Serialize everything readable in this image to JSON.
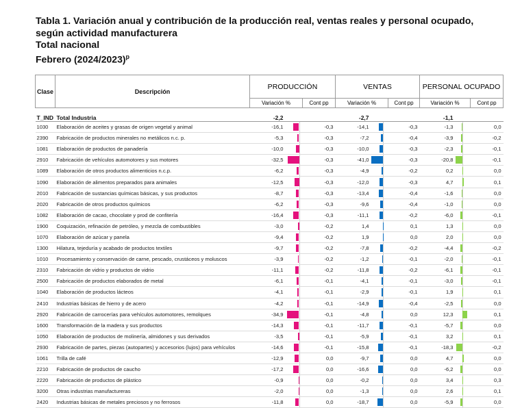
{
  "title": {
    "line1": "Tabla 1. Variación anual y contribución de la producción real, ventas reales y personal ocupado,",
    "line2": "según actividad manufacturera",
    "line3": "Total nacional",
    "line4": "Febrero (2024/2023)",
    "line4_sup": "p"
  },
  "headers": {
    "clase": "Clase",
    "descripcion": "Descripción",
    "produccion": "PRODUCCIÓN",
    "ventas": "VENTAS",
    "personal": "PERSONAL OCUPADO",
    "variacion": "Variación %",
    "contribucion": "Cont pp"
  },
  "colors": {
    "produccion_bar": "#e4127d",
    "ventas_bar": "#0a6fc2",
    "personal_bar": "#8dd34a"
  },
  "total": {
    "clase": "T_IND",
    "desc": "Total Industria",
    "prod_var": "-2,2",
    "vent_var": "-2,7",
    "pers_var": "-1,1"
  },
  "rows": [
    {
      "clase": "1030",
      "desc": "Elaboración de aceites y grasas de origen vegetal y animal",
      "prod_var": "-16,1",
      "prod_cont": "-0,3",
      "vent_var": "-14,1",
      "vent_cont": "-0,3",
      "pers_var": "-1,3",
      "pers_cont": "0,0"
    },
    {
      "clase": "2390",
      "desc": "Fabricación de productos minerales no metálicos n.c. p.",
      "prod_var": "-5,3",
      "prod_cont": "-0,3",
      "vent_var": "-7,2",
      "vent_cont": "-0,4",
      "pers_var": "-3,9",
      "pers_cont": "-0,2"
    },
    {
      "clase": "1081",
      "desc": "Elaboración de productos de panadería",
      "prod_var": "-10,0",
      "prod_cont": "-0,3",
      "vent_var": "-10,0",
      "vent_cont": "-0,3",
      "pers_var": "-2,3",
      "pers_cont": "-0,1"
    },
    {
      "clase": "2910",
      "desc": "Fabricación de vehículos automotores y sus motores",
      "prod_var": "-32,5",
      "prod_cont": "-0,3",
      "vent_var": "-41,0",
      "vent_cont": "-0,3",
      "pers_var": "-20,8",
      "pers_cont": "-0,1"
    },
    {
      "clase": "1089",
      "desc": "Elaboración de otros productos alimenticios n.c.p.",
      "prod_var": "-6,2",
      "prod_cont": "-0,3",
      "vent_var": "-4,9",
      "vent_cont": "-0,2",
      "pers_var": "0,2",
      "pers_cont": "0,0"
    },
    {
      "clase": "1090",
      "desc": "Elaboración de alimentos preparados para animales",
      "prod_var": "-12,5",
      "prod_cont": "-0,3",
      "vent_var": "-12,0",
      "vent_cont": "-0,3",
      "pers_var": "4,7",
      "pers_cont": "0,1"
    },
    {
      "clase": "2010",
      "desc": "Fabricación de sustancias químicas básicas, y sus productos",
      "prod_var": "-8,7",
      "prod_cont": "-0,3",
      "vent_var": "-13,4",
      "vent_cont": "-0,4",
      "pers_var": "-1,6",
      "pers_cont": "0,0"
    },
    {
      "clase": "2020",
      "desc": "Fabricación de otros productos químicos",
      "prod_var": "-6,2",
      "prod_cont": "-0,3",
      "vent_var": "-9,6",
      "vent_cont": "-0,4",
      "pers_var": "-1,0",
      "pers_cont": "0,0"
    },
    {
      "clase": "1082",
      "desc": "Elaboración de cacao, chocolate y prod de confitería",
      "prod_var": "-16,4",
      "prod_cont": "-0,3",
      "vent_var": "-11,1",
      "vent_cont": "-0,2",
      "pers_var": "-6,0",
      "pers_cont": "-0,1"
    },
    {
      "clase": "1900",
      "desc": "Coquización, refinación de petróleo, y mezcla de combustibles",
      "prod_var": "-3,0",
      "prod_cont": "-0,2",
      "vent_var": "1,4",
      "vent_cont": "0,1",
      "pers_var": "1,3",
      "pers_cont": "0,0"
    },
    {
      "clase": "1070",
      "desc": "Elaboración de azúcar y panela",
      "prod_var": "-9,4",
      "prod_cont": "-0,2",
      "vent_var": "1,9",
      "vent_cont": "0,0",
      "pers_var": "2,0",
      "pers_cont": "0,0"
    },
    {
      "clase": "1300",
      "desc": "Hilatura, tejeduría y acabado de productos textiles",
      "prod_var": "-9,7",
      "prod_cont": "-0,2",
      "vent_var": "-7,8",
      "vent_cont": "-0,2",
      "pers_var": "-4,4",
      "pers_cont": "-0,2"
    },
    {
      "clase": "1010",
      "desc": "Procesamiento y conservación de carne, pescado, crustáceos y moluscos",
      "prod_var": "-3,9",
      "prod_cont": "-0,2",
      "vent_var": "-1,2",
      "vent_cont": "-0,1",
      "pers_var": "-2,0",
      "pers_cont": "-0,1"
    },
    {
      "clase": "2310",
      "desc": "Fabricación de vidrio y productos de vidrio",
      "prod_var": "-11,1",
      "prod_cont": "-0,2",
      "vent_var": "-11,8",
      "vent_cont": "-0,2",
      "pers_var": "-6,1",
      "pers_cont": "-0,1"
    },
    {
      "clase": "2500",
      "desc": "Fabricación de productos elaborados de metal",
      "prod_var": "-6,1",
      "prod_cont": "-0,1",
      "vent_var": "-4,1",
      "vent_cont": "-0,1",
      "pers_var": "-3,0",
      "pers_cont": "-0,1"
    },
    {
      "clase": "1040",
      "desc": "Elaboración de productos lácteos",
      "prod_var": "-4,1",
      "prod_cont": "-0,1",
      "vent_var": "-2,9",
      "vent_cont": "-0,1",
      "pers_var": "1,9",
      "pers_cont": "0,1"
    },
    {
      "clase": "2410",
      "desc": "Industrias básicas de hierro y de acero",
      "prod_var": "-4,2",
      "prod_cont": "-0,1",
      "vent_var": "-14,9",
      "vent_cont": "-0,4",
      "pers_var": "-2,5",
      "pers_cont": "0,0"
    },
    {
      "clase": "2920",
      "desc": "Fabricación de carrocerías para vehículos automotores, remolques",
      "prod_var": "-34,9",
      "prod_cont": "-0,1",
      "vent_var": "-4,8",
      "vent_cont": "0,0",
      "pers_var": "12,3",
      "pers_cont": "0,1"
    },
    {
      "clase": "1600",
      "desc": "Transformación de la madera y sus productos",
      "prod_var": "-14,3",
      "prod_cont": "-0,1",
      "vent_var": "-11,7",
      "vent_cont": "-0,1",
      "pers_var": "-5,7",
      "pers_cont": "0,0"
    },
    {
      "clase": "1050",
      "desc": "Elaboración de productos de molinería, almidones y sus derivados",
      "prod_var": "-3,5",
      "prod_cont": "-0,1",
      "vent_var": "-5,9",
      "vent_cont": "-0,1",
      "pers_var": "3,2",
      "pers_cont": "0,1"
    },
    {
      "clase": "2930",
      "desc": "Fabricación de partes, piezas (autopartes) y accesorios (lujos) para vehículos",
      "prod_var": "-14,6",
      "prod_cont": "-0,1",
      "vent_var": "-15,8",
      "vent_cont": "-0,1",
      "pers_var": "-18,3",
      "pers_cont": "-0,2"
    },
    {
      "clase": "1061",
      "desc": "Trilla de café",
      "prod_var": "-12,9",
      "prod_cont": "0,0",
      "vent_var": "-9,7",
      "vent_cont": "0,0",
      "pers_var": "4,7",
      "pers_cont": "0,0"
    },
    {
      "clase": "2210",
      "desc": "Fabricación de productos de caucho",
      "prod_var": "-17,2",
      "prod_cont": "0,0",
      "vent_var": "-16,6",
      "vent_cont": "0,0",
      "pers_var": "-6,2",
      "pers_cont": "0,0"
    },
    {
      "clase": "2220",
      "desc": "Fabricación de productos de plástico",
      "prod_var": "-0,9",
      "prod_cont": "0,0",
      "vent_var": "-0,2",
      "vent_cont": "0,0",
      "pers_var": "3,4",
      "pers_cont": "0,3"
    },
    {
      "clase": "3200",
      "desc": "Otras industrias manufactureras",
      "prod_var": "-2,0",
      "prod_cont": "0,0",
      "vent_var": "-1,3",
      "vent_cont": "0,0",
      "pers_var": "2,6",
      "pers_cont": "0,1"
    },
    {
      "clase": "2420",
      "desc": "Industrias básicas de metales preciosos y no ferrosos",
      "prod_var": "-11,8",
      "prod_cont": "0,0",
      "vent_var": "-18,7",
      "vent_cont": "0,0",
      "pers_var": "-5,9",
      "pers_cont": "0,0"
    }
  ]
}
